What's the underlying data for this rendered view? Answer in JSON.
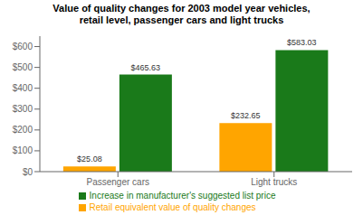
{
  "chart_data": {
    "type": "bar",
    "title": "Value of quality changes for 2003 model year vehicles,\nretail level, passenger cars and light trucks",
    "categories": [
      "Passenger cars",
      "Light trucks"
    ],
    "series": [
      {
        "name": "Retail equivalent value of quality changes",
        "color": "#FFA500",
        "values": [
          25.08,
          232.65
        ],
        "value_labels": [
          "$25.08",
          "$232.65"
        ]
      },
      {
        "name": "Increase in manufacturer's suggested list price",
        "color": "#1a7a1a",
        "values": [
          465.63,
          583.03
        ],
        "value_labels": [
          "$465.63",
          "$583.03"
        ]
      }
    ],
    "ylim": [
      0,
      650
    ],
    "yticks": [
      {
        "value": 0,
        "label": "$0"
      },
      {
        "value": 100,
        "label": "$100"
      },
      {
        "value": 200,
        "label": "$200"
      },
      {
        "value": 300,
        "label": "$300"
      },
      {
        "value": 400,
        "label": "$400"
      },
      {
        "value": 500,
        "label": "$500"
      },
      {
        "value": 600,
        "label": "$600"
      }
    ],
    "data_labels": true,
    "grid": false,
    "legend": "bottom"
  }
}
